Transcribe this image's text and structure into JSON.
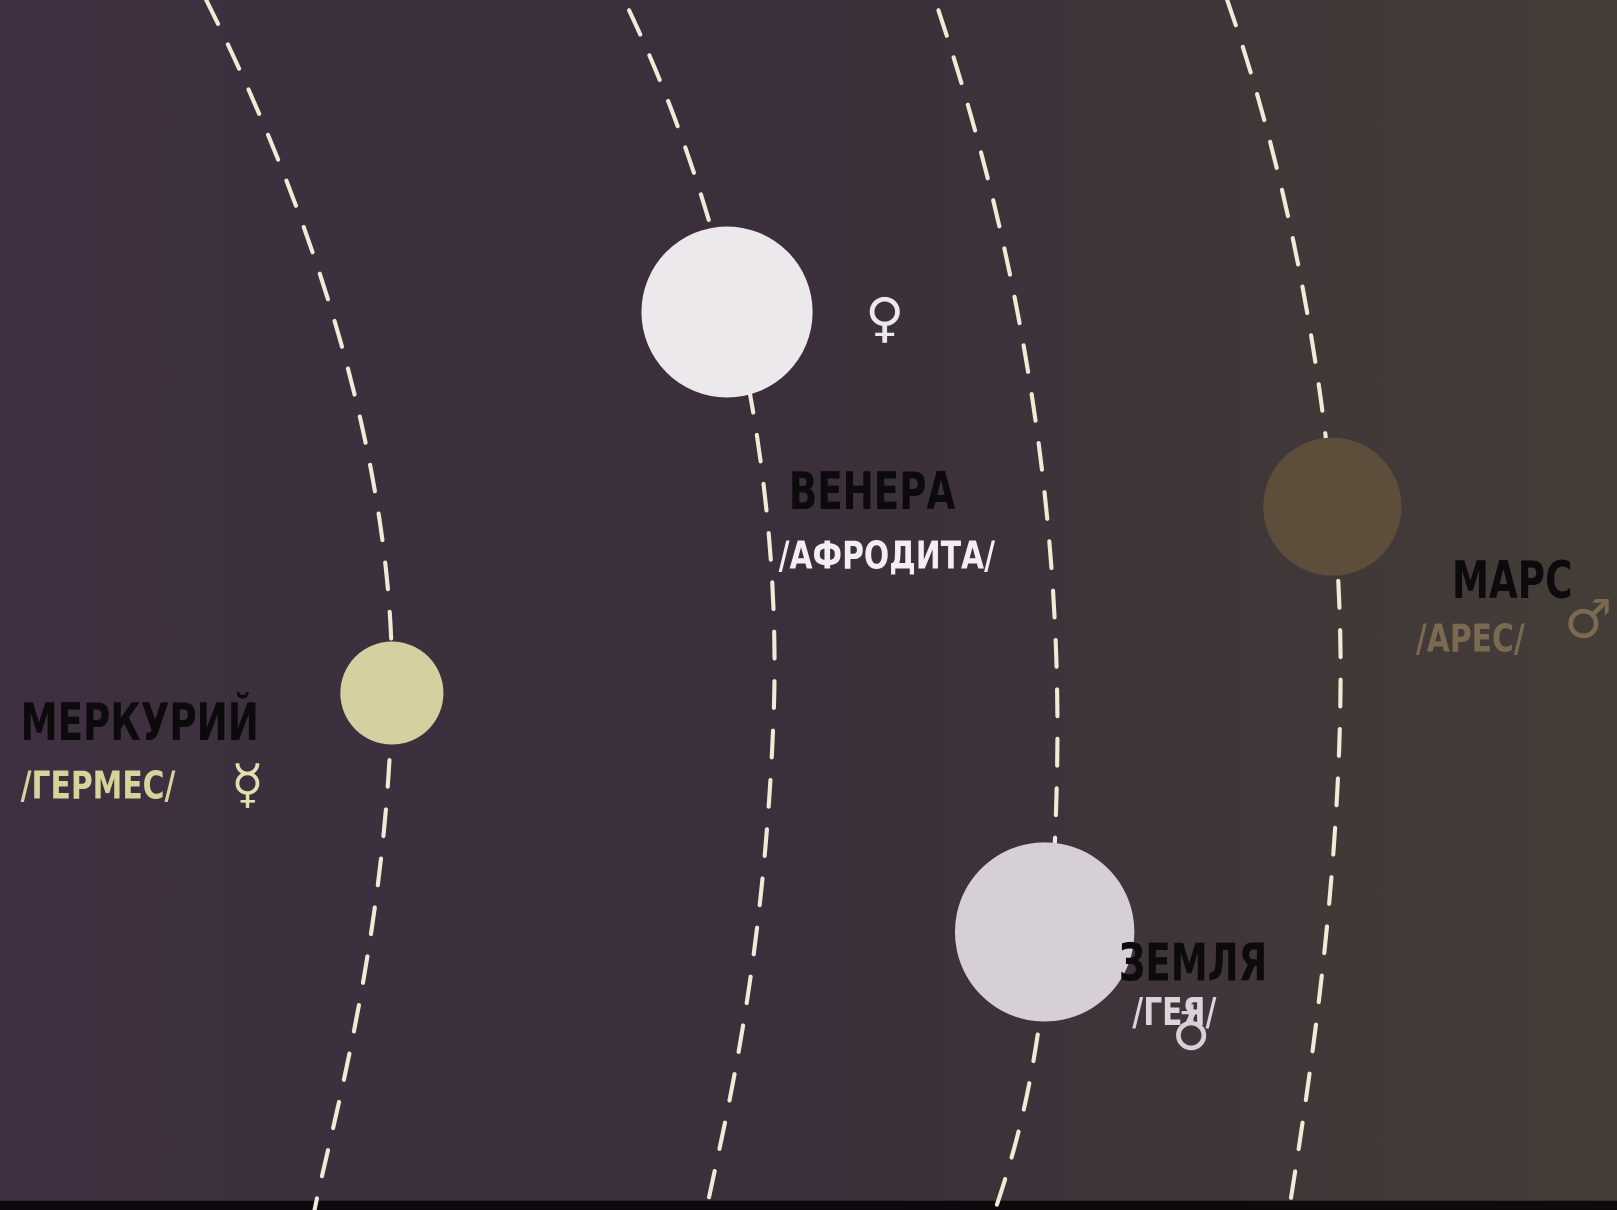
{
  "planets": [
    {
      "name": "МЕРКУРИЙ",
      "alias": "/ГЕРМЕС/",
      "symbol": "☿"
    },
    {
      "name": "ВЕНЕРА",
      "alias": "/АФРОДИТА/",
      "symbol": "♀"
    },
    {
      "name": "ЗЕМЛЯ",
      "alias": "/ГЕЯ/",
      "symbol": "♁"
    },
    {
      "name": "МАРС",
      "alias": "/АРЕС/",
      "symbol": "♂"
    }
  ]
}
